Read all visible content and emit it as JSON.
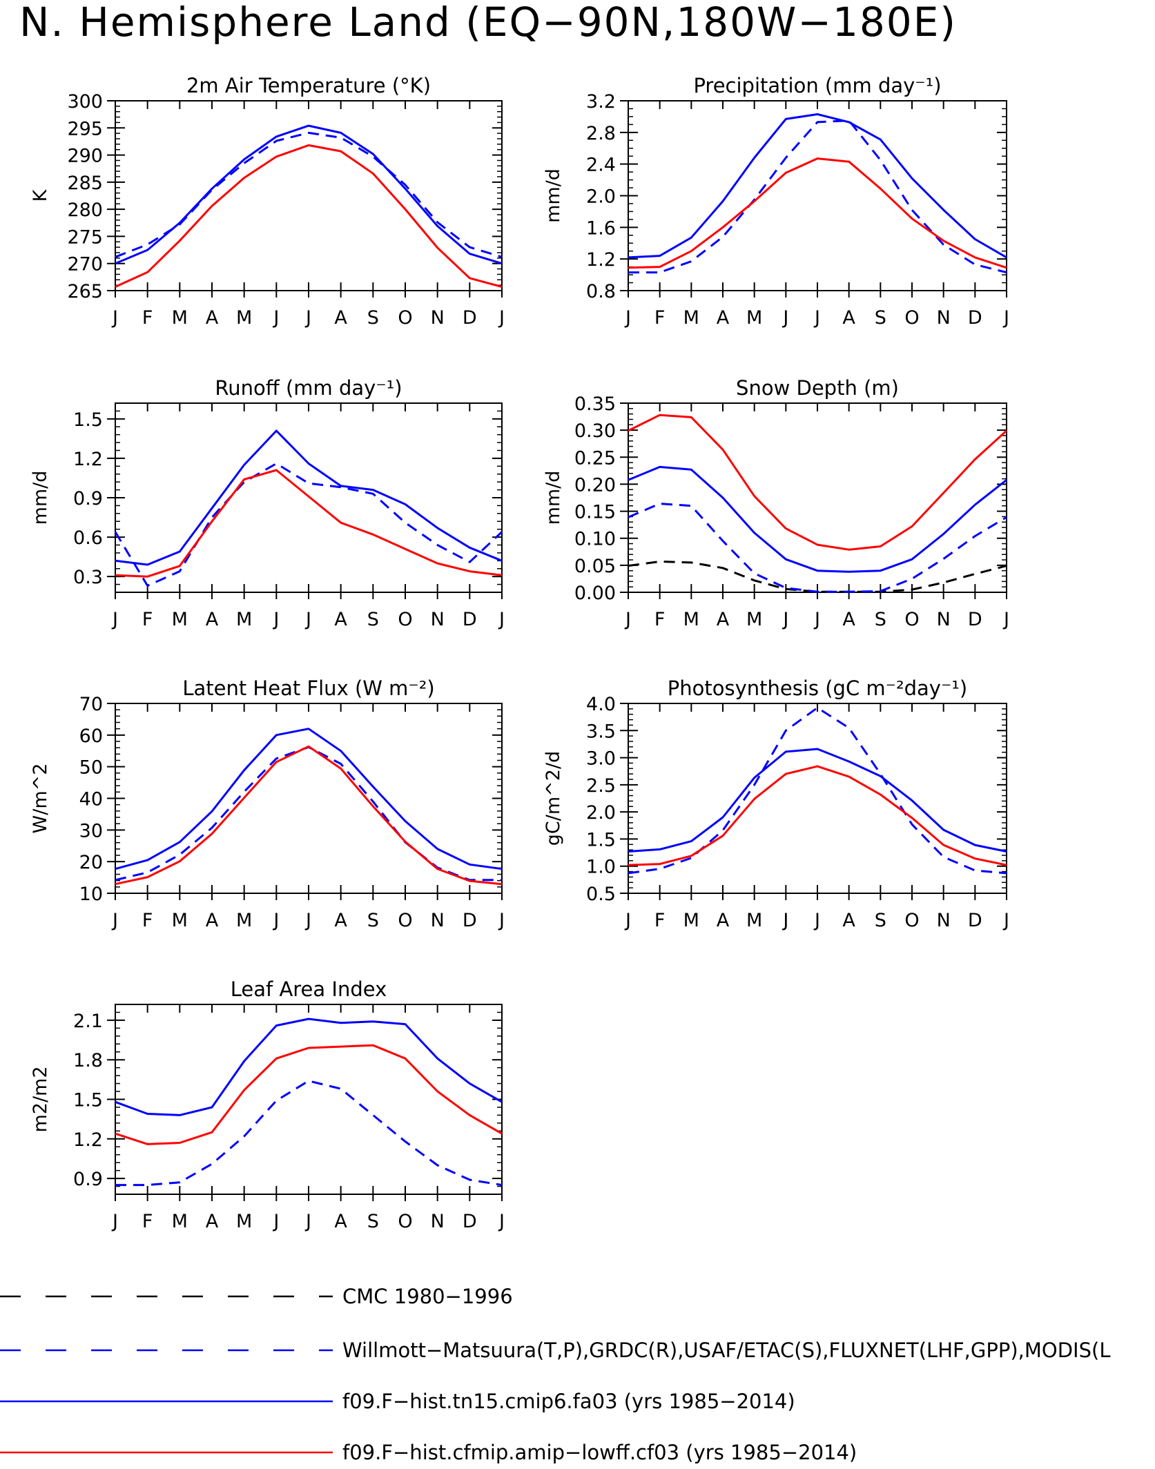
{
  "title": "N. Hemisphere Land (EQ−90N,180W−180E)",
  "months": [
    "J",
    "F",
    "M",
    "A",
    "M",
    "J",
    "J",
    "A",
    "S",
    "O",
    "N",
    "D",
    "J"
  ],
  "legend": [
    {
      "label": "CMC 1980−1996",
      "color": "#000000",
      "dash": true
    },
    {
      "label": "Willmott−Matsuura(T,P),GRDC(R),USAF/ETAC(S),FLUXNET(LHF,GPP),MODIS(L",
      "color": "#0000ff",
      "dash": true
    },
    {
      "label": "f09.F−hist.tn15.cmip6.fa03 (yrs 1985−2014)",
      "color": "#0000ff",
      "dash": false
    },
    {
      "label": "f09.F−hist.cfmip.amip−lowff.cf03 (yrs 1985−2014)",
      "color": "#ff0000",
      "dash": false
    }
  ],
  "chart_data": [
    {
      "type": "line",
      "title": "2m Air Temperature (°K)",
      "ylabel": "K",
      "ylim": [
        265,
        300
      ],
      "yticks": [
        "265",
        "270",
        "275",
        "280",
        "285",
        "290",
        "295",
        "300"
      ],
      "yminor": 1,
      "series": [
        {
          "values": [
            271.2,
            273.5,
            277.2,
            283.6,
            288.5,
            292.6,
            294.1,
            293.2,
            289.7,
            284.5,
            277.6,
            273.0,
            271.2
          ],
          "color": "#0000ff",
          "dash": true
        },
        {
          "values": [
            270.0,
            272.5,
            277.5,
            283.8,
            289.2,
            293.4,
            295.4,
            294.1,
            290.2,
            283.8,
            276.9,
            271.8,
            270.0
          ],
          "color": "#0000ff",
          "dash": false
        },
        {
          "values": [
            265.7,
            268.4,
            274.2,
            280.6,
            285.8,
            289.7,
            291.8,
            290.7,
            286.6,
            280.0,
            272.9,
            267.3,
            265.7
          ],
          "color": "#ff0000",
          "dash": false
        }
      ]
    },
    {
      "type": "line",
      "title": "Precipitation (mm day⁻¹)",
      "ylabel": "mm/d",
      "ylim": [
        0.8,
        3.2
      ],
      "yticks": [
        "0.8",
        "1.2",
        "1.6",
        "2.0",
        "2.4",
        "2.8",
        "3.2"
      ],
      "yminor": 0.1,
      "series": [
        {
          "values": [
            1.03,
            1.03,
            1.17,
            1.48,
            1.95,
            2.48,
            2.93,
            2.95,
            2.45,
            1.82,
            1.38,
            1.13,
            1.03
          ],
          "color": "#0000ff",
          "dash": true
        },
        {
          "values": [
            1.22,
            1.24,
            1.47,
            1.93,
            2.48,
            2.97,
            3.03,
            2.93,
            2.71,
            2.22,
            1.82,
            1.45,
            1.22
          ],
          "color": "#0000ff",
          "dash": false
        },
        {
          "values": [
            1.09,
            1.1,
            1.3,
            1.6,
            1.93,
            2.29,
            2.47,
            2.43,
            2.09,
            1.71,
            1.43,
            1.22,
            1.09
          ],
          "color": "#ff0000",
          "dash": false
        }
      ]
    },
    {
      "type": "line",
      "title": "Runoff (mm day⁻¹)",
      "ylabel": "mm/d",
      "ylim": [
        0.18,
        1.62
      ],
      "yticks": [
        "0.3",
        "0.6",
        "0.9",
        "1.2",
        "1.5"
      ],
      "ytickvals": [
        0.3,
        0.6,
        0.9,
        1.2,
        1.5
      ],
      "yminor": 0.06,
      "series": [
        {
          "values": [
            0.64,
            0.23,
            0.34,
            0.75,
            1.02,
            1.16,
            1.01,
            0.98,
            0.93,
            0.71,
            0.54,
            0.41,
            0.64
          ],
          "color": "#0000ff",
          "dash": true
        },
        {
          "values": [
            0.42,
            0.39,
            0.49,
            0.82,
            1.15,
            1.41,
            1.16,
            0.99,
            0.96,
            0.85,
            0.67,
            0.52,
            0.42
          ],
          "color": "#0000ff",
          "dash": false
        },
        {
          "values": [
            0.31,
            0.3,
            0.38,
            0.72,
            1.04,
            1.11,
            0.91,
            0.71,
            0.62,
            0.51,
            0.4,
            0.34,
            0.31
          ],
          "color": "#ff0000",
          "dash": false
        }
      ]
    },
    {
      "type": "line",
      "title": "Snow Depth (m)",
      "ylabel": "mm/d",
      "ylim": [
        0.0,
        0.35
      ],
      "yticks": [
        "0.00",
        "0.05",
        "0.10",
        "0.15",
        "0.20",
        "0.25",
        "0.30",
        "0.35"
      ],
      "yminor": 0.01,
      "series": [
        {
          "values": [
            0.049,
            0.057,
            0.055,
            0.045,
            0.022,
            0.006,
            0.001,
            0.001,
            0.001,
            0.005,
            0.018,
            0.034,
            0.049
          ],
          "color": "#000000",
          "dash": true
        },
        {
          "values": [
            0.139,
            0.164,
            0.16,
            0.095,
            0.035,
            0.008,
            0.001,
            0.001,
            0.002,
            0.025,
            0.062,
            0.104,
            0.139
          ],
          "color": "#0000ff",
          "dash": true
        },
        {
          "values": [
            0.208,
            0.232,
            0.227,
            0.175,
            0.11,
            0.061,
            0.04,
            0.038,
            0.04,
            0.061,
            0.108,
            0.162,
            0.208
          ],
          "color": "#0000ff",
          "dash": false
        },
        {
          "values": [
            0.299,
            0.328,
            0.324,
            0.264,
            0.178,
            0.118,
            0.088,
            0.079,
            0.085,
            0.122,
            0.184,
            0.246,
            0.299
          ],
          "color": "#ff0000",
          "dash": false
        }
      ]
    },
    {
      "type": "line",
      "title": "Latent Heat Flux (W m⁻²)",
      "ylabel": "W/m^2",
      "ylim": [
        10,
        70
      ],
      "yticks": [
        "10",
        "20",
        "30",
        "40",
        "50",
        "60",
        "70"
      ],
      "yminor": 2,
      "series": [
        {
          "values": [
            14.2,
            16.6,
            22.2,
            30.7,
            42.1,
            52.6,
            56.2,
            50.9,
            39.0,
            26.1,
            18.1,
            14.2,
            14.2
          ],
          "color": "#0000ff",
          "dash": true
        },
        {
          "values": [
            17.7,
            20.5,
            26.2,
            35.9,
            48.9,
            60.0,
            62.0,
            55.0,
            43.7,
            32.8,
            24.0,
            19.1,
            17.7
          ],
          "color": "#0000ff",
          "dash": false
        },
        {
          "values": [
            12.9,
            15.1,
            20.1,
            28.8,
            40.2,
            51.5,
            56.4,
            49.4,
            37.5,
            26.3,
            17.7,
            13.9,
            12.9
          ],
          "color": "#ff0000",
          "dash": false
        }
      ]
    },
    {
      "type": "line",
      "title": "Photosynthesis (gC m⁻²day⁻¹)",
      "ylabel": "gC/m^2/d",
      "ylim": [
        0.5,
        4.0
      ],
      "yticks": [
        "0.5",
        "1.0",
        "1.5",
        "2.0",
        "2.5",
        "3.0",
        "3.5",
        "4.0"
      ],
      "yminor": 0.1,
      "series": [
        {
          "values": [
            0.87,
            0.95,
            1.15,
            1.66,
            2.5,
            3.5,
            3.92,
            3.55,
            2.7,
            1.77,
            1.17,
            0.92,
            0.87
          ],
          "color": "#0000ff",
          "dash": true
        },
        {
          "values": [
            1.27,
            1.31,
            1.46,
            1.9,
            2.63,
            3.11,
            3.16,
            2.93,
            2.66,
            2.21,
            1.67,
            1.39,
            1.27
          ],
          "color": "#0000ff",
          "dash": false
        },
        {
          "values": [
            1.02,
            1.04,
            1.19,
            1.56,
            2.24,
            2.7,
            2.84,
            2.65,
            2.32,
            1.89,
            1.39,
            1.14,
            1.02
          ],
          "color": "#ff0000",
          "dash": false
        }
      ]
    },
    {
      "type": "line",
      "title": "Leaf Area Index",
      "ylabel": "m2/m2",
      "ylim": [
        0.78,
        2.22
      ],
      "yticks": [
        "0.9",
        "1.2",
        "1.5",
        "1.8",
        "2.1"
      ],
      "ytickvals": [
        0.9,
        1.2,
        1.5,
        1.8,
        2.1
      ],
      "yminor": 0.06,
      "series": [
        {
          "values": [
            0.85,
            0.85,
            0.87,
            1.01,
            1.22,
            1.49,
            1.64,
            1.58,
            1.38,
            1.18,
            1.0,
            0.89,
            0.85
          ],
          "color": "#0000ff",
          "dash": true
        },
        {
          "values": [
            1.48,
            1.39,
            1.38,
            1.44,
            1.79,
            2.06,
            2.11,
            2.08,
            2.09,
            2.07,
            1.81,
            1.62,
            1.48
          ],
          "color": "#0000ff",
          "dash": false
        },
        {
          "values": [
            1.24,
            1.16,
            1.17,
            1.25,
            1.57,
            1.81,
            1.89,
            1.9,
            1.91,
            1.81,
            1.56,
            1.38,
            1.24
          ],
          "color": "#ff0000",
          "dash": false
        }
      ]
    }
  ]
}
